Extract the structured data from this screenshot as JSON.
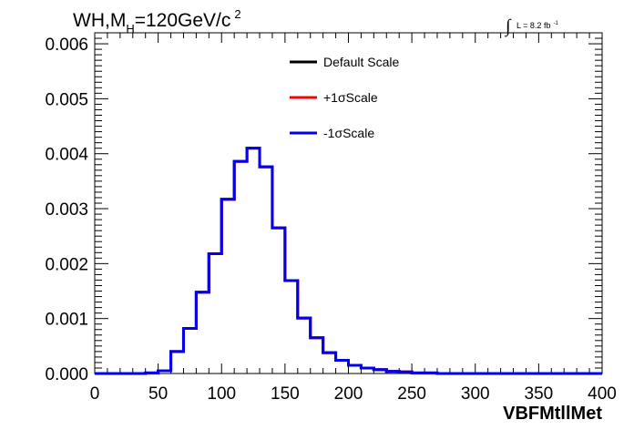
{
  "title": {
    "main_pre": "WH,M",
    "sub": "H",
    "main_post": "=120GeV/c",
    "sup": "2"
  },
  "lumi": {
    "integral": "∫",
    "text": "L = 8.2 fb",
    "sup": "-1"
  },
  "colors": {
    "default": "#000000",
    "plus": "#ff0000",
    "minus": "#0000ee"
  },
  "chart_data": {
    "type": "line",
    "xlabel": "VBFMtllMet",
    "xlim": [
      0,
      400
    ],
    "ylim": [
      0,
      0.0062
    ],
    "x_ticks": [
      0,
      50,
      100,
      150,
      200,
      250,
      300,
      350,
      400
    ],
    "y_ticks": [
      0.0,
      0.001,
      0.002,
      0.003,
      0.004,
      0.005,
      0.006
    ],
    "y_tick_labels": [
      "0.000",
      "0.001",
      "0.002",
      "0.003",
      "0.004",
      "0.005",
      "0.006"
    ],
    "bin_edges": [
      0,
      10,
      20,
      30,
      40,
      50,
      60,
      70,
      80,
      90,
      100,
      110,
      120,
      130,
      140,
      150,
      160,
      170,
      180,
      190,
      200,
      210,
      220,
      230,
      240,
      250,
      260,
      270,
      280,
      290,
      300,
      310,
      320,
      330,
      340,
      350,
      360,
      370,
      380,
      390,
      400
    ],
    "legend_position": "top-center",
    "series": [
      {
        "name": "Default Scale",
        "color": "#000000",
        "values": [
          0,
          0,
          0,
          0,
          1e-05,
          5e-05,
          0.0004,
          0.00082,
          0.00148,
          0.00218,
          0.00317,
          0.00386,
          0.0041,
          0.00376,
          0.00265,
          0.00169,
          0.00101,
          0.00065,
          0.00038,
          0.00024,
          0.00015,
          0.0001,
          7e-05,
          4e-05,
          3e-05,
          1e-05,
          1e-05,
          0,
          0,
          0,
          0,
          0,
          0,
          0,
          0,
          0,
          0,
          0,
          0,
          0
        ]
      },
      {
        "name": "+1σScale",
        "color": "#ff0000",
        "values": [
          0,
          0,
          0,
          0,
          1e-05,
          5e-05,
          0.0004,
          0.00082,
          0.00148,
          0.00218,
          0.00317,
          0.00386,
          0.0041,
          0.00376,
          0.00265,
          0.00169,
          0.00101,
          0.00065,
          0.00038,
          0.00024,
          0.00015,
          0.0001,
          7e-05,
          4e-05,
          3e-05,
          1e-05,
          1e-05,
          0,
          0,
          0,
          0,
          0,
          0,
          0,
          0,
          0,
          0,
          0,
          0,
          0
        ]
      },
      {
        "name": "-1σScale",
        "color": "#0000ee",
        "values": [
          0,
          0,
          0,
          0,
          1e-05,
          5e-05,
          0.0004,
          0.00082,
          0.00148,
          0.00218,
          0.00317,
          0.00386,
          0.0041,
          0.00376,
          0.00265,
          0.00169,
          0.00101,
          0.00065,
          0.00038,
          0.00024,
          0.00015,
          0.0001,
          7e-05,
          4e-05,
          3e-05,
          1e-05,
          1e-05,
          0,
          0,
          0,
          0,
          0,
          0,
          0,
          0,
          0,
          0,
          0,
          0,
          0
        ]
      }
    ]
  }
}
